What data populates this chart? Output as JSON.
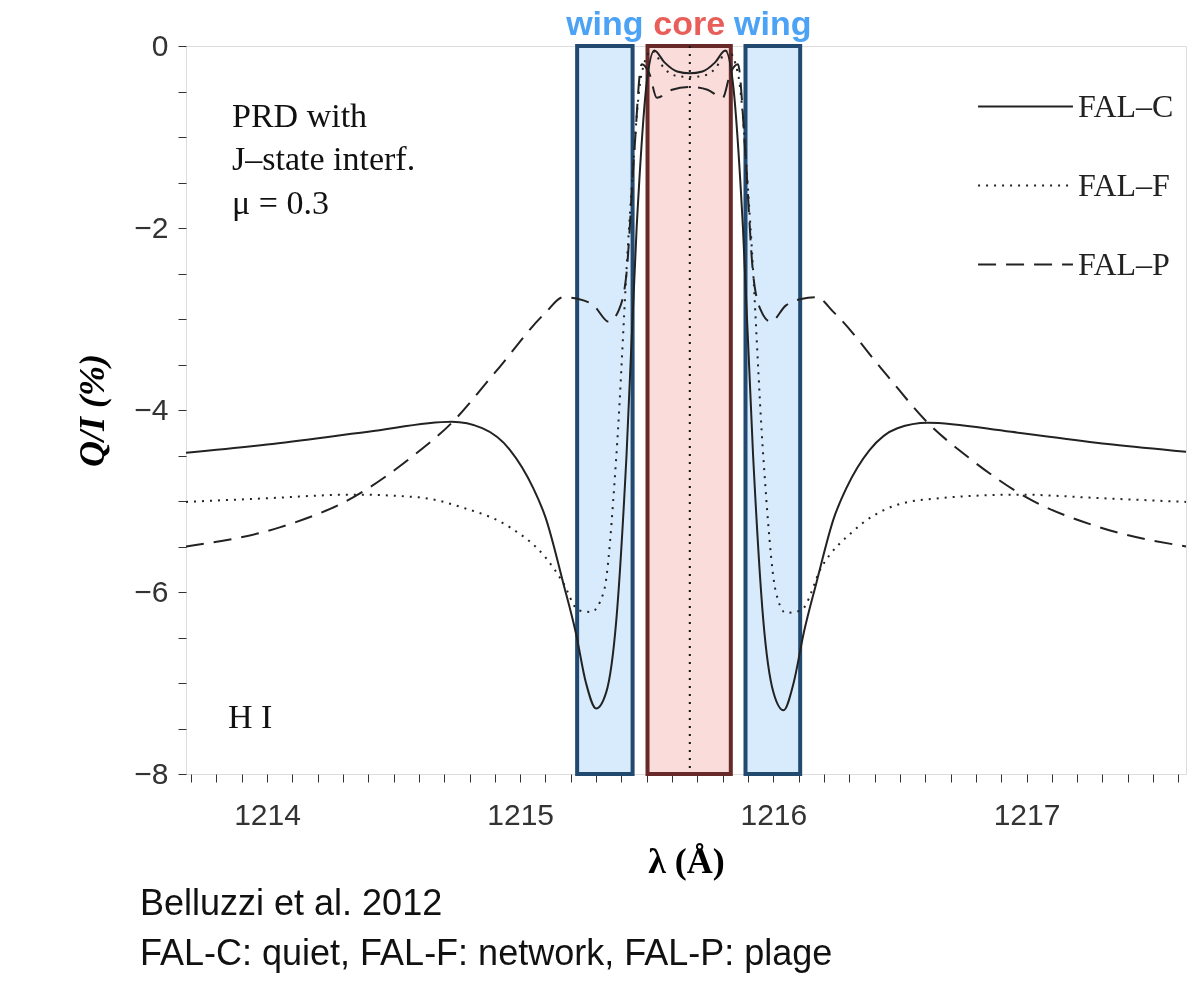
{
  "chart_data": {
    "type": "line",
    "xlabel": "λ (Å)",
    "ylabel": "Q/I (%)",
    "xlim": [
      1213.68,
      1217.63
    ],
    "ylim": [
      -8,
      0
    ],
    "xticks": [
      {
        "value": 1213.7,
        "label": null
      },
      {
        "value": 1213.8,
        "label": null
      },
      {
        "value": 1213.9,
        "label": null
      },
      1214,
      {
        "value": 1214.1,
        "label": null
      },
      {
        "value": 1214.2,
        "label": null
      },
      {
        "value": 1214.3,
        "label": null
      },
      {
        "value": 1214.4,
        "label": null
      },
      {
        "value": 1214.5,
        "label": null
      },
      {
        "value": 1214.6,
        "label": null
      },
      {
        "value": 1214.7,
        "label": null
      },
      {
        "value": 1214.8,
        "label": null
      },
      {
        "value": 1214.9,
        "label": null
      },
      1215,
      {
        "value": 1215.1,
        "label": null
      },
      {
        "value": 1215.2,
        "label": null
      },
      {
        "value": 1215.3,
        "label": null
      },
      {
        "value": 1215.4,
        "label": null
      },
      {
        "value": 1215.5,
        "label": null
      },
      {
        "value": 1215.6,
        "label": null
      },
      {
        "value": 1215.7,
        "label": null
      },
      {
        "value": 1215.8,
        "label": null
      },
      {
        "value": 1215.9,
        "label": null
      },
      1216,
      {
        "value": 1216.1,
        "label": null
      },
      {
        "value": 1216.2,
        "label": null
      },
      {
        "value": 1216.3,
        "label": null
      },
      {
        "value": 1216.4,
        "label": null
      },
      {
        "value": 1216.5,
        "label": null
      },
      {
        "value": 1216.6,
        "label": null
      },
      {
        "value": 1216.7,
        "label": null
      },
      {
        "value": 1216.8,
        "label": null
      },
      {
        "value": 1216.9,
        "label": null
      },
      1217,
      {
        "value": 1217.1,
        "label": null
      },
      {
        "value": 1217.2,
        "label": null
      },
      {
        "value": 1217.3,
        "label": null
      },
      {
        "value": 1217.4,
        "label": null
      },
      {
        "value": 1217.5,
        "label": null
      },
      {
        "value": 1217.6,
        "label": null
      }
    ],
    "yticks": [
      {
        "value": -8,
        "label": "−8"
      },
      {
        "value": -7.5,
        "label": null
      },
      {
        "value": -7,
        "label": null
      },
      {
        "value": -6.5,
        "label": null
      },
      {
        "value": -6,
        "label": "−6"
      },
      {
        "value": -5.5,
        "label": null
      },
      {
        "value": -5,
        "label": null
      },
      {
        "value": -4.5,
        "label": null
      },
      {
        "value": -4,
        "label": "−4"
      },
      {
        "value": -3.5,
        "label": null
      },
      {
        "value": -3,
        "label": null
      },
      {
        "value": -2.5,
        "label": null
      },
      {
        "value": -2,
        "label": "−2"
      },
      {
        "value": -1.5,
        "label": null
      },
      {
        "value": -1,
        "label": null
      },
      {
        "value": -0.5,
        "label": null
      },
      {
        "value": 0,
        "label": "0"
      }
    ],
    "grid": false,
    "legend": "top right",
    "marker": "none",
    "series": [
      {
        "name": "FAL–C",
        "color": "#222222",
        "line_style": "solid",
        "x": [
          1213.68,
          1214.0,
          1214.4,
          1214.73,
          1214.85,
          1214.96,
          1215.05,
          1215.1,
          1215.17,
          1215.22,
          1215.26,
          1215.3,
          1215.34,
          1215.38,
          1215.42,
          1215.46,
          1215.5,
          1215.53,
          1215.57,
          1215.62,
          1215.67,
          1215.72,
          1215.77,
          1215.81,
          1215.84,
          1215.88,
          1215.92,
          1215.96,
          1216.0,
          1216.04,
          1216.08,
          1216.12,
          1216.17,
          1216.24,
          1216.29,
          1216.38,
          1216.49,
          1216.61,
          1216.94,
          1217.34,
          1217.63
        ],
        "values": [
          -4.47,
          -4.38,
          -4.24,
          -4.13,
          -4.2,
          -4.44,
          -4.85,
          -5.18,
          -5.9,
          -6.45,
          -7.0,
          -7.28,
          -7.1,
          -6.3,
          -4.5,
          -2.0,
          -0.4,
          -0.05,
          -0.18,
          -0.28,
          -0.3,
          -0.28,
          -0.18,
          -0.05,
          -0.4,
          -2.0,
          -4.5,
          -6.3,
          -7.1,
          -7.3,
          -7.0,
          -6.45,
          -5.9,
          -5.18,
          -4.85,
          -4.44,
          -4.2,
          -4.14,
          -4.24,
          -4.38,
          -4.46
        ]
      },
      {
        "name": "FAL–F",
        "color": "#222222",
        "line_style": "dotted",
        "x": [
          1213.68,
          1214.0,
          1214.34,
          1214.6,
          1214.77,
          1214.96,
          1215.1,
          1215.17,
          1215.23,
          1215.28,
          1215.33,
          1215.38,
          1215.43,
          1215.48,
          1215.52,
          1215.57,
          1215.62,
          1215.67,
          1215.72,
          1215.77,
          1215.82,
          1215.86,
          1215.91,
          1215.96,
          1216.01,
          1216.05,
          1216.11,
          1216.19,
          1216.32,
          1216.58,
          1216.97,
          1217.3,
          1217.63
        ],
        "values": [
          -5.01,
          -4.97,
          -4.93,
          -4.96,
          -5.07,
          -5.29,
          -5.62,
          -5.9,
          -6.2,
          -6.22,
          -6.0,
          -4.5,
          -2.0,
          -0.3,
          -0.05,
          -0.25,
          -0.33,
          -0.34,
          -0.33,
          -0.25,
          -0.05,
          -0.3,
          -2.0,
          -4.5,
          -6.0,
          -6.23,
          -6.2,
          -5.73,
          -5.32,
          -4.99,
          -4.93,
          -4.97,
          -5.01
        ]
      },
      {
        "name": "FAL–P",
        "color": "#222222",
        "line_style": "dashed",
        "x": [
          1213.68,
          1214.05,
          1214.34,
          1214.57,
          1214.73,
          1214.9,
          1215.1,
          1215.17,
          1215.23,
          1215.29,
          1215.35,
          1215.39,
          1215.42,
          1215.45,
          1215.48,
          1215.51,
          1215.54,
          1215.6,
          1215.67,
          1215.74,
          1215.8,
          1215.83,
          1215.86,
          1215.89,
          1215.92,
          1215.95,
          1215.99,
          1216.05,
          1216.11,
          1216.17,
          1216.24,
          1216.44,
          1216.61,
          1216.77,
          1217.0,
          1217.29,
          1217.63
        ],
        "values": [
          -5.5,
          -5.29,
          -4.96,
          -4.52,
          -4.14,
          -3.59,
          -2.93,
          -2.76,
          -2.78,
          -2.85,
          -3.03,
          -2.9,
          -2.5,
          -1.2,
          -0.2,
          -0.3,
          -0.57,
          -0.48,
          -0.45,
          -0.48,
          -0.57,
          -0.3,
          -0.2,
          -1.2,
          -2.5,
          -2.9,
          -3.03,
          -2.85,
          -2.78,
          -2.76,
          -2.93,
          -3.59,
          -4.14,
          -4.52,
          -4.96,
          -5.29,
          -5.5
        ]
      }
    ],
    "bands": [
      {
        "axis": "x",
        "from": 1215.225,
        "to": 1215.444,
        "label": "wing",
        "color": "#d8ebfd"
      },
      {
        "axis": "x",
        "from": 1215.503,
        "to": 1215.832,
        "label": "core",
        "color": "#fadcdb"
      },
      {
        "axis": "x",
        "from": 1215.89,
        "to": 1216.106,
        "label": "wing",
        "color": "#d8ebfd"
      }
    ],
    "ref_lines": [
      {
        "axis": "x",
        "value": 1215.67,
        "color": "#111111",
        "line_style": "dotted"
      }
    ],
    "annotations": [
      "PRD with",
      "J–state interf.",
      "μ = 0.3",
      "H I",
      "Belluzzi et al. 2012",
      "FAL-C: quiet, FAL-F: network, FAL-P: plage"
    ]
  }
}
